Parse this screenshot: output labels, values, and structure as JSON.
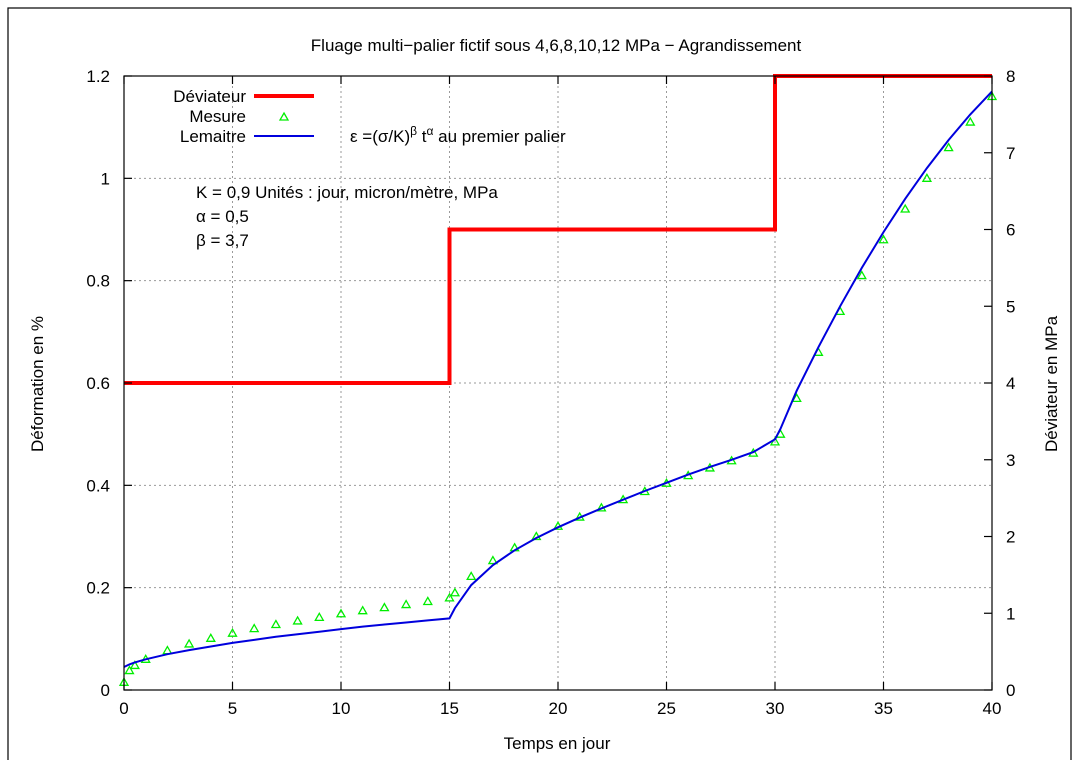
{
  "chart_data": {
    "type": "line",
    "title": "Fluage multi−palier fictif sous 4,6,8,10,12 MPa − Agrandissement",
    "xlabel": "Temps en jour",
    "ylabel": "Déformation en %",
    "y2label": "Déviateur en MPa",
    "xlim": [
      0,
      40
    ],
    "ylim": [
      0,
      1.2
    ],
    "y2lim": [
      0,
      8
    ],
    "x_ticks": [
      0,
      5,
      10,
      15,
      20,
      25,
      30,
      35,
      40
    ],
    "x_tick_labels": [
      "0",
      "5",
      "10",
      "15",
      "20",
      "25",
      "30",
      "35",
      "40"
    ],
    "y_ticks": [
      0,
      0.2,
      0.4,
      0.6,
      0.8,
      1.0,
      1.2
    ],
    "y_tick_labels": [
      "0",
      "0.2",
      "0.4",
      "0.6",
      "0.8",
      "1",
      "1.2"
    ],
    "y2_ticks": [
      0,
      1,
      2,
      3,
      4,
      5,
      6,
      7,
      8
    ],
    "y2_tick_labels": [
      "0",
      "1",
      "2",
      "3",
      "4",
      "5",
      "6",
      "7",
      "8"
    ],
    "grid": true,
    "legend_position": "top-left",
    "series": [
      {
        "name": "Déviateur",
        "axis": "y2",
        "style": "step",
        "color": "#ff0000",
        "x": [
          0,
          15,
          15,
          30,
          30,
          40
        ],
        "y": [
          4,
          4,
          6,
          6,
          8,
          8
        ]
      },
      {
        "name": "Mesure",
        "axis": "y",
        "style": "markers",
        "marker": "triangle",
        "color": "#00ee00",
        "x": [
          0,
          0.25,
          0.5,
          1,
          2,
          3,
          4,
          5,
          6,
          7,
          8,
          9,
          10,
          11,
          12,
          13,
          14,
          15,
          15.25,
          16,
          17,
          18,
          19,
          20,
          21,
          22,
          23,
          24,
          25,
          26,
          27,
          28,
          29,
          30,
          30.25,
          31,
          32,
          33,
          34,
          35,
          36,
          37,
          38,
          39,
          40
        ],
        "y": [
          0.015,
          0.038,
          0.048,
          0.06,
          0.077,
          0.09,
          0.101,
          0.111,
          0.12,
          0.128,
          0.135,
          0.142,
          0.149,
          0.155,
          0.161,
          0.167,
          0.173,
          0.18,
          0.19,
          0.222,
          0.253,
          0.278,
          0.3,
          0.32,
          0.338,
          0.356,
          0.372,
          0.388,
          0.404,
          0.419,
          0.434,
          0.448,
          0.463,
          0.485,
          0.5,
          0.57,
          0.66,
          0.74,
          0.81,
          0.88,
          0.94,
          1.0,
          1.06,
          1.11,
          1.16
        ]
      },
      {
        "name": "Lemaitre",
        "axis": "y",
        "style": "line",
        "color": "#0000dd",
        "x": [
          0,
          0.25,
          0.5,
          1,
          2,
          3,
          4,
          5,
          6,
          7,
          8,
          9,
          10,
          11,
          12,
          13,
          14,
          15,
          15.25,
          16,
          17,
          18,
          19,
          20,
          21,
          22,
          23,
          24,
          25,
          26,
          27,
          28,
          29,
          30,
          30.25,
          31,
          32,
          33,
          34,
          35,
          36,
          37,
          38,
          39,
          40
        ],
        "y": [
          0.045,
          0.05,
          0.054,
          0.06,
          0.07,
          0.078,
          0.085,
          0.092,
          0.098,
          0.104,
          0.109,
          0.114,
          0.119,
          0.124,
          0.128,
          0.132,
          0.136,
          0.14,
          0.16,
          0.205,
          0.244,
          0.273,
          0.297,
          0.318,
          0.337,
          0.355,
          0.372,
          0.389,
          0.405,
          0.421,
          0.436,
          0.45,
          0.465,
          0.49,
          0.51,
          0.585,
          0.67,
          0.75,
          0.825,
          0.895,
          0.96,
          1.02,
          1.075,
          1.125,
          1.17
        ]
      }
    ],
    "annotations": {
      "formula_prefix": "ε =(σ/K)",
      "formula_beta": "β",
      "formula_t": " t",
      "formula_alpha": "α",
      "formula_suffix": " au premier palier",
      "param_k": "K = 0,9 Unités : jour, micron/mètre, MPa",
      "param_alpha": "α = 0,5",
      "param_beta": "β = 3,7"
    }
  }
}
